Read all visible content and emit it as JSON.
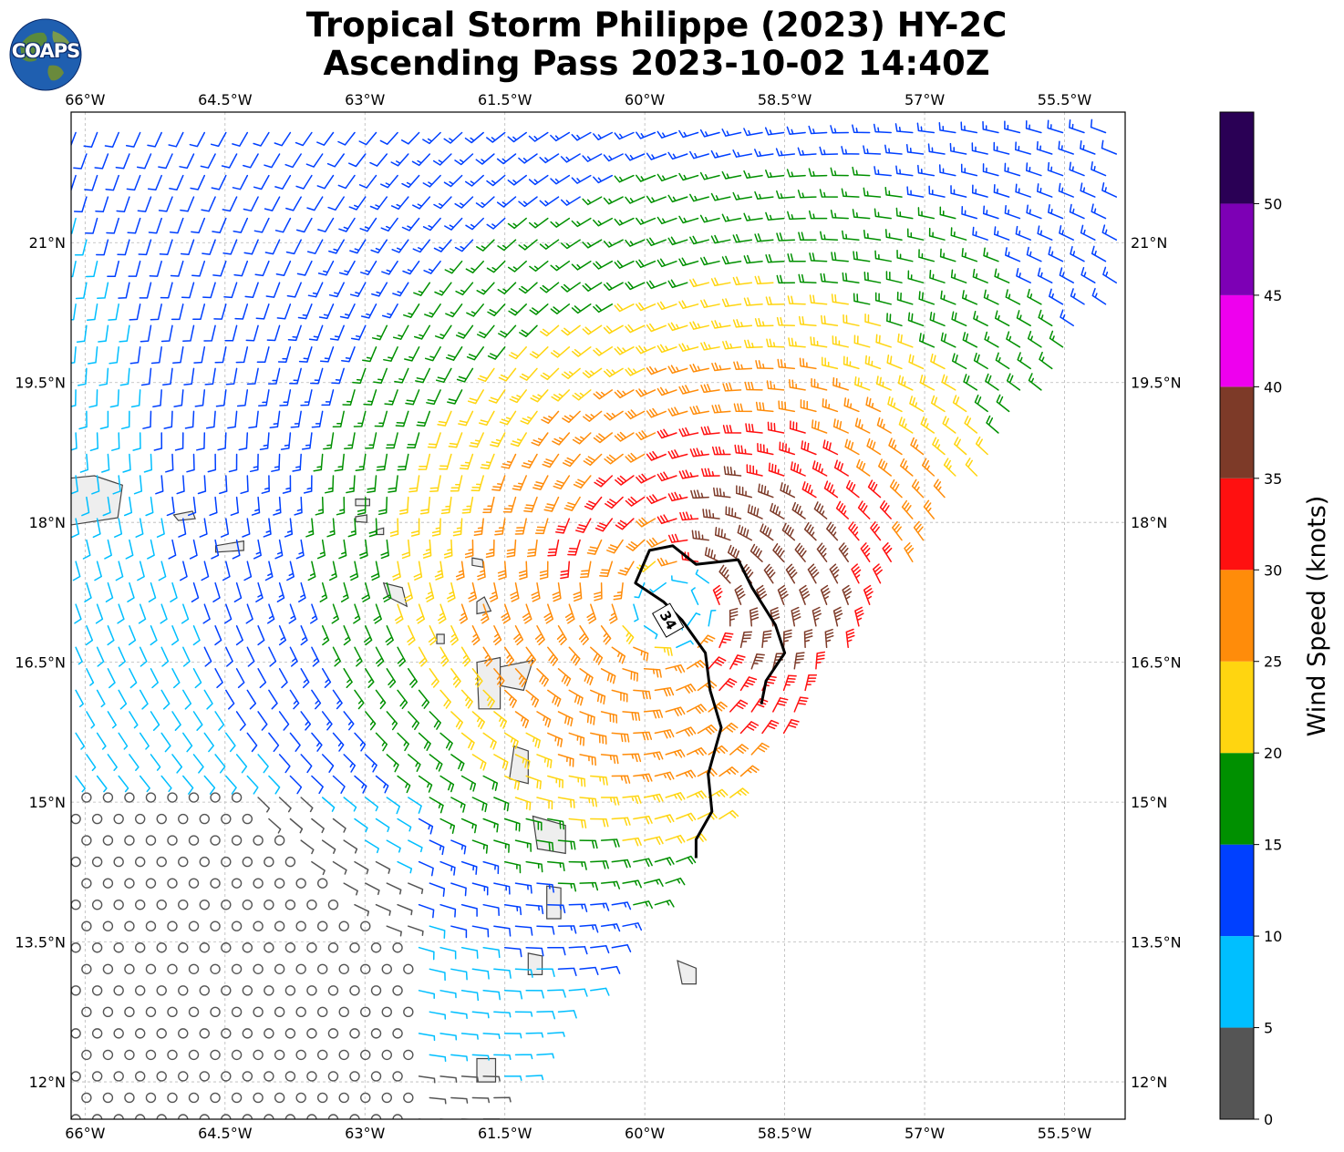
{
  "title": {
    "line1": "Tropical Storm Philippe (2023) HY-2C",
    "line2": "Ascending Pass 2023-10-02 14:40Z"
  },
  "logo": {
    "text": "COAPS",
    "icon": "globe-icon"
  },
  "chart_data": {
    "type": "wind-barb-map",
    "lon_ticks": [
      "66°W",
      "64.5°W",
      "63°W",
      "61.5°W",
      "60°W",
      "58.5°W",
      "57°W",
      "55.5°W"
    ],
    "lat_ticks": [
      "21°N",
      "19.5°N",
      "18°N",
      "16.5°N",
      "15°N",
      "13.5°N",
      "12°N"
    ],
    "lon_range": [
      -66.15,
      -54.85
    ],
    "lat_range": [
      11.6,
      22.4
    ],
    "grid": true,
    "storm_center": {
      "lon": -59.7,
      "lat": 17.1
    },
    "contour": {
      "label": "34",
      "units": "knots"
    },
    "colorbar": {
      "title": "Wind Speed (knots)",
      "tick_labels": [
        "0",
        "5",
        "10",
        "15",
        "20",
        "25",
        "30",
        "35",
        "40",
        "45",
        "50"
      ],
      "bins": [
        0,
        5,
        10,
        15,
        20,
        25,
        30,
        35,
        40,
        45,
        50,
        55
      ],
      "colors": [
        "#555555",
        "#00bfff",
        "#0040ff",
        "#009000",
        "#ffd510",
        "#ff8c0a",
        "#ff1010",
        "#7d3a28",
        "#ee00ee",
        "#7d00b5",
        "#2a0055"
      ]
    }
  }
}
